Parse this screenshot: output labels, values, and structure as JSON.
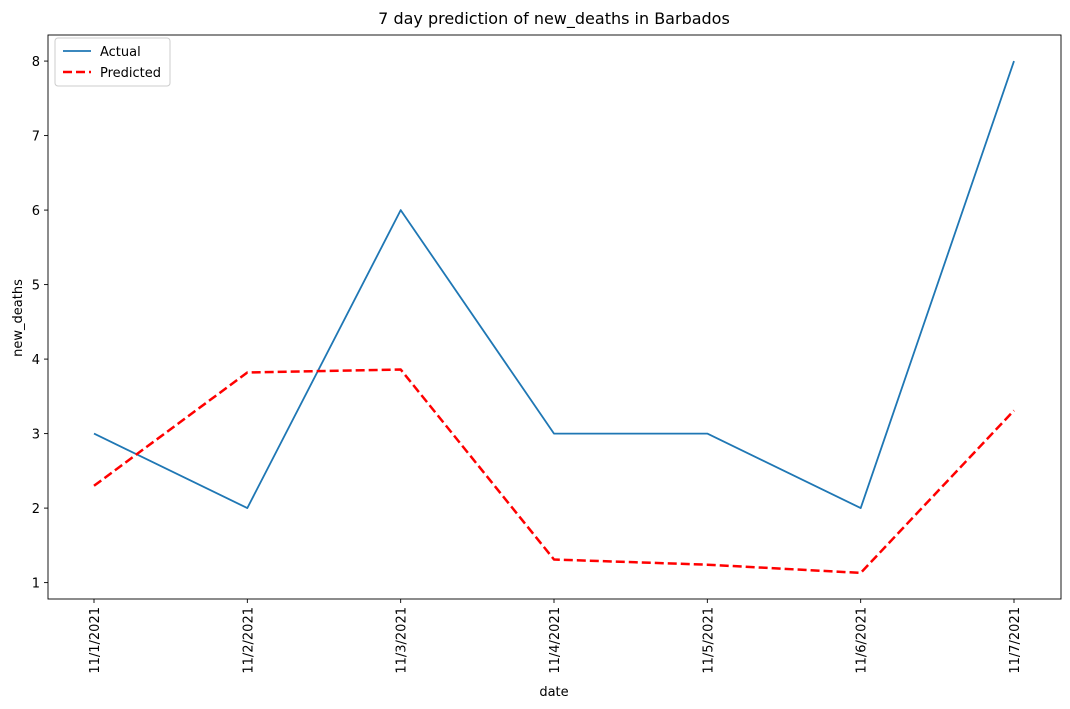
{
  "chart_data": {
    "type": "line",
    "title": "7 day prediction of new_deaths in Barbados",
    "xlabel": "date",
    "ylabel": "new_deaths",
    "categories": [
      "11/1/2021",
      "11/2/2021",
      "11/3/2021",
      "11/4/2021",
      "11/5/2021",
      "11/6/2021",
      "11/7/2021"
    ],
    "ylim": [
      0.78,
      8.35
    ],
    "yticks": [
      1,
      2,
      3,
      4,
      5,
      6,
      7,
      8
    ],
    "grid": false,
    "legend_position": "top-left",
    "series": [
      {
        "name": "Actual",
        "values": [
          3,
          2,
          6,
          3,
          3,
          2,
          8
        ],
        "color": "#1f77b4",
        "style": "solid"
      },
      {
        "name": "Predicted",
        "values": [
          2.3,
          3.82,
          3.86,
          1.31,
          1.24,
          1.13,
          3.31
        ],
        "color": "#ff0000",
        "style": "dashed"
      }
    ]
  }
}
